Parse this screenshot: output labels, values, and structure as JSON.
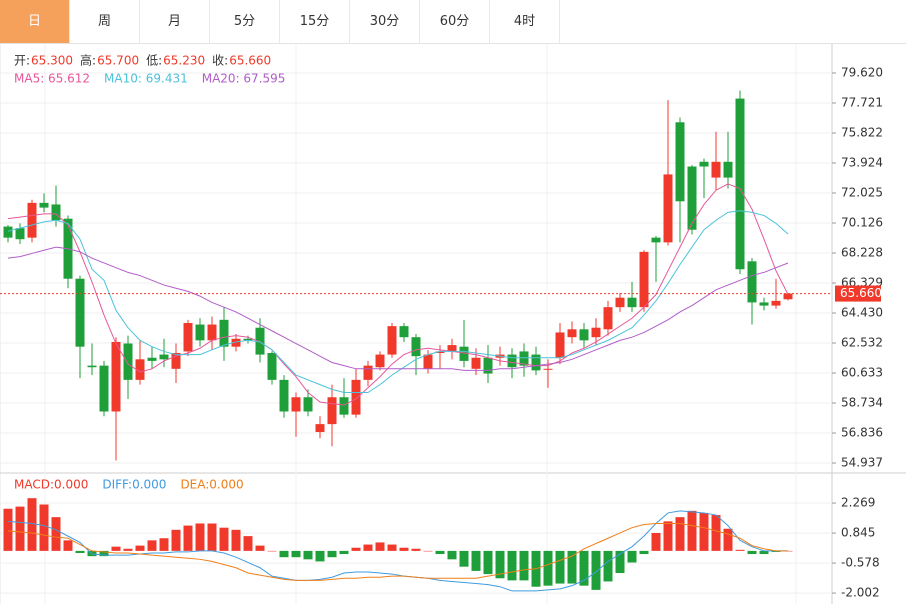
{
  "tabs": {
    "items": [
      "日",
      "周",
      "月",
      "5分",
      "15分",
      "30分",
      "60分",
      "4时"
    ],
    "active": 0
  },
  "chart_data": [
    {
      "type": "candlestick",
      "quote": [
        {
          "label": "开:",
          "value_label": "65.300"
        },
        {
          "label": "高:",
          "value_label": "65.700"
        },
        {
          "label": "低:",
          "value_label": "65.230"
        },
        {
          "label": "收:",
          "value_label": "65.660"
        }
      ],
      "up_color": "#f0392b",
      "down_color": "#1f9f3a",
      "open": [
        69.9,
        69.8,
        69.2,
        71.4,
        71.3,
        70.4,
        66.6,
        61.1,
        61.1,
        58.2,
        62.5,
        60.2,
        61.6,
        61.8,
        60.9,
        62.0,
        63.7,
        62.7,
        64.0,
        62.3,
        62.8,
        63.5,
        61.9,
        60.2,
        58.2,
        59.1,
        56.9,
        57.4,
        59.1,
        58.0,
        60.2,
        61.0,
        61.8,
        63.6,
        62.9,
        60.9,
        61.9,
        62.0,
        62.3,
        60.9,
        61.6,
        61.6,
        61.8,
        62.0,
        61.8,
        60.9,
        61.6,
        62.9,
        63.4,
        62.9,
        63.4,
        64.8,
        65.4,
        64.8,
        69.2,
        68.9,
        76.5,
        73.7,
        74.0,
        73.0,
        74.0,
        78.0,
        67.7,
        65.1,
        64.9,
        65.3
      ],
      "high": [
        70.0,
        70.1,
        71.6,
        72.0,
        72.5,
        70.6,
        66.8,
        62.5,
        61.4,
        62.9,
        63.0,
        62.7,
        62.3,
        62.8,
        62.5,
        64.0,
        64.1,
        64.2,
        64.8,
        63.1,
        63.0,
        64.1,
        62.0,
        60.5,
        59.4,
        59.6,
        57.9,
        59.9,
        60.3,
        60.9,
        61.4,
        62.0,
        63.8,
        63.8,
        63.1,
        62.1,
        62.4,
        62.8,
        64.0,
        62.2,
        62.4,
        62.3,
        62.2,
        62.5,
        62.3,
        61.5,
        63.8,
        63.9,
        63.8,
        64.1,
        65.2,
        65.7,
        66.4,
        68.4,
        69.3,
        77.9,
        76.8,
        73.8,
        74.2,
        75.9,
        75.9,
        78.5,
        67.9,
        65.4,
        66.6,
        65.7
      ],
      "low": [
        68.9,
        68.8,
        68.9,
        70.8,
        69.9,
        66.0,
        60.3,
        60.5,
        57.9,
        55.1,
        59.0,
        59.9,
        60.9,
        61.0,
        60.0,
        61.7,
        62.3,
        62.1,
        61.4,
        62.0,
        62.5,
        61.3,
        59.9,
        57.8,
        56.6,
        57.9,
        56.5,
        56.0,
        57.8,
        57.8,
        59.8,
        60.8,
        61.6,
        62.6,
        60.5,
        60.6,
        60.9,
        61.5,
        61.0,
        60.5,
        60.0,
        61.1,
        60.3,
        60.4,
        60.5,
        59.7,
        61.2,
        62.5,
        62.2,
        62.4,
        63.0,
        64.5,
        64.5,
        64.5,
        66.4,
        68.7,
        68.9,
        69.4,
        71.7,
        72.2,
        72.3,
        66.9,
        63.7,
        64.6,
        64.7,
        65.23
      ],
      "close": [
        69.2,
        69.1,
        71.4,
        71.1,
        70.3,
        66.6,
        62.3,
        61.0,
        58.2,
        62.6,
        60.2,
        61.5,
        61.4,
        61.5,
        61.9,
        63.8,
        62.7,
        63.7,
        62.3,
        62.8,
        62.7,
        61.8,
        60.2,
        58.2,
        59.1,
        58.2,
        57.4,
        59.1,
        58.0,
        60.2,
        61.1,
        61.8,
        63.6,
        62.9,
        61.7,
        61.8,
        62.0,
        62.4,
        61.4,
        61.6,
        60.6,
        61.8,
        61.0,
        61.1,
        60.8,
        60.9,
        63.2,
        63.4,
        62.7,
        63.5,
        64.8,
        65.4,
        64.8,
        68.3,
        68.9,
        73.2,
        71.5,
        69.7,
        73.7,
        74.0,
        73.0,
        67.2,
        65.1,
        64.9,
        65.2,
        65.66
      ],
      "series": [
        {
          "name": "MA5: 65.612",
          "color": "#e6579a",
          "values": [
            70.4,
            70.5,
            70.6,
            70.7,
            70.7,
            70.0,
            68.3,
            66.4,
            64.3,
            62.5,
            61.2,
            60.7,
            60.9,
            61.4,
            61.7,
            61.9,
            62.2,
            62.7,
            62.9,
            63.0,
            62.9,
            62.6,
            62.1,
            61.2,
            60.4,
            59.4,
            58.8,
            58.7,
            58.6,
            59.0,
            59.7,
            60.4,
            61.2,
            61.8,
            62.1,
            62.2,
            62.1,
            62.0,
            61.9,
            61.8,
            61.6,
            61.4,
            61.3,
            61.2,
            61.1,
            61.1,
            61.4,
            61.9,
            62.2,
            62.6,
            63.1,
            63.6,
            64.1,
            64.8,
            65.6,
            67.1,
            68.6,
            70.1,
            71.3,
            72.2,
            72.6,
            72.3,
            71.0,
            69.1,
            67.1,
            65.612
          ]
        },
        {
          "name": "MA10: 69.431",
          "color": "#4cc2dc",
          "values": [
            69.6,
            69.8,
            70.0,
            70.2,
            70.3,
            70.1,
            69.1,
            67.2,
            66.5,
            64.6,
            63.5,
            62.7,
            62.3,
            62.0,
            61.8,
            61.8,
            61.8,
            62.1,
            62.4,
            62.6,
            62.7,
            62.6,
            62.1,
            61.3,
            60.5,
            60.2,
            59.9,
            59.6,
            59.4,
            59.4,
            59.4,
            59.9,
            60.5,
            61.0,
            61.5,
            61.8,
            62.0,
            62.0,
            62.0,
            61.9,
            61.8,
            61.7,
            61.6,
            61.6,
            61.6,
            61.6,
            61.6,
            61.8,
            62.1,
            62.4,
            62.7,
            63.1,
            63.5,
            64.3,
            65.2,
            66.3,
            67.5,
            68.6,
            69.7,
            70.3,
            70.8,
            70.9,
            70.8,
            70.6,
            70.1,
            69.431
          ]
        },
        {
          "name": "MA20: 67.595",
          "color": "#b15dc9",
          "values": [
            67.9,
            68.0,
            68.2,
            68.4,
            68.6,
            68.5,
            68.3,
            67.9,
            67.6,
            67.3,
            67.0,
            66.8,
            66.5,
            66.2,
            66.0,
            65.8,
            65.5,
            65.1,
            64.8,
            64.5,
            64.1,
            63.7,
            63.3,
            62.9,
            62.5,
            62.1,
            61.7,
            61.3,
            61.1,
            60.9,
            60.9,
            60.9,
            60.9,
            60.9,
            60.9,
            60.9,
            60.9,
            60.9,
            60.8,
            60.8,
            60.8,
            60.9,
            60.9,
            61.0,
            61.1,
            61.2,
            61.3,
            61.5,
            61.8,
            62.1,
            62.4,
            62.7,
            62.9,
            63.2,
            63.6,
            64.0,
            64.5,
            64.9,
            65.4,
            65.9,
            66.2,
            66.5,
            66.8,
            67.0,
            67.3,
            67.595
          ]
        }
      ],
      "last_price": {
        "value": 65.66,
        "label": "65.660"
      },
      "ylim": [
        54.37,
        81.2
      ],
      "yticks": [
        {
          "value": 79.62,
          "label": "79.620"
        },
        {
          "value": 77.721,
          "label": "77.721"
        },
        {
          "value": 75.822,
          "label": "75.822"
        },
        {
          "value": 73.924,
          "label": "73.924"
        },
        {
          "value": 72.025,
          "label": "72.025"
        },
        {
          "value": 70.126,
          "label": "70.126"
        },
        {
          "value": 68.228,
          "label": "68.228"
        },
        {
          "value": 66.329,
          "label": "66.329"
        },
        {
          "value": 64.43,
          "label": "64.430"
        },
        {
          "value": 62.532,
          "label": "62.532"
        },
        {
          "value": 60.633,
          "label": "60.633"
        },
        {
          "value": 58.734,
          "label": "58.734"
        },
        {
          "value": 56.836,
          "label": "56.836"
        },
        {
          "value": 54.937,
          "label": "54.937"
        }
      ],
      "grid": true
    },
    {
      "type": "macd",
      "series": [
        {
          "name": "MACD:0.000",
          "kind": "bar",
          "color": "#f0392b",
          "neg_color": "#1f9f3a",
          "values": [
            2.0,
            2.1,
            2.5,
            2.2,
            1.6,
            0.5,
            -0.1,
            -0.25,
            -0.25,
            0.2,
            0.1,
            0.25,
            0.5,
            0.6,
            1.0,
            1.2,
            1.3,
            1.3,
            1.1,
            1.0,
            0.7,
            0.25,
            0.0,
            -0.3,
            -0.3,
            -0.4,
            -0.5,
            -0.3,
            -0.15,
            0.15,
            0.3,
            0.4,
            0.3,
            0.15,
            0.1,
            0.0,
            -0.15,
            -0.4,
            -0.75,
            -0.95,
            -1.1,
            -1.3,
            -1.4,
            -1.4,
            -1.7,
            -1.65,
            -1.55,
            -1.55,
            -1.65,
            -1.85,
            -1.45,
            -1.05,
            -0.55,
            -0.15,
            0.85,
            1.4,
            1.6,
            1.9,
            1.8,
            1.7,
            1.05,
            0.05,
            -0.15,
            -0.15,
            -0.05,
            0.0
          ]
        },
        {
          "name": "DIFF:0.000",
          "kind": "line",
          "color": "#3f9be0",
          "values": [
            1.4,
            1.35,
            1.3,
            1.2,
            1.0,
            0.7,
            0.4,
            -0.15,
            -0.2,
            -0.2,
            -0.2,
            -0.15,
            -0.1,
            -0.1,
            -0.05,
            -0.05,
            0.0,
            0.0,
            -0.1,
            -0.3,
            -0.55,
            -0.8,
            -1.2,
            -1.3,
            -1.4,
            -1.4,
            -1.35,
            -1.25,
            -1.05,
            -1.0,
            -1.0,
            -1.05,
            -1.1,
            -1.2,
            -1.25,
            -1.3,
            -1.4,
            -1.45,
            -1.5,
            -1.55,
            -1.6,
            -1.7,
            -1.9,
            -1.9,
            -1.9,
            -1.85,
            -1.8,
            -1.65,
            -1.4,
            -1.0,
            -0.5,
            -0.15,
            0.2,
            0.7,
            1.3,
            1.8,
            1.9,
            1.85,
            1.8,
            1.7,
            1.2,
            0.5,
            0.2,
            0.0,
            0.0,
            0.0
          ]
        },
        {
          "name": "DEA:0.000",
          "kind": "line",
          "color": "#f07f1a",
          "values": [
            0.95,
            0.9,
            0.85,
            0.75,
            0.65,
            0.6,
            0.3,
            0.0,
            -0.05,
            -0.1,
            -0.1,
            -0.15,
            -0.2,
            -0.25,
            -0.3,
            -0.35,
            -0.4,
            -0.5,
            -0.65,
            -0.8,
            -1.05,
            -1.15,
            -1.25,
            -1.35,
            -1.4,
            -1.4,
            -1.4,
            -1.35,
            -1.3,
            -1.3,
            -1.25,
            -1.25,
            -1.2,
            -1.2,
            -1.25,
            -1.3,
            -1.3,
            -1.3,
            -1.3,
            -1.3,
            -1.2,
            -1.1,
            -1.0,
            -0.9,
            -0.85,
            -0.65,
            -0.45,
            -0.25,
            0.1,
            0.35,
            0.6,
            0.85,
            1.1,
            1.25,
            1.3,
            1.3,
            1.3,
            1.2,
            1.1,
            0.95,
            0.8,
            0.6,
            0.25,
            0.1,
            0.0,
            0.0
          ]
        }
      ],
      "ylim": [
        -2.52,
        3.6
      ],
      "yticks": [
        2.269,
        0.845,
        -0.578,
        -2.002
      ],
      "grid": true
    }
  ]
}
